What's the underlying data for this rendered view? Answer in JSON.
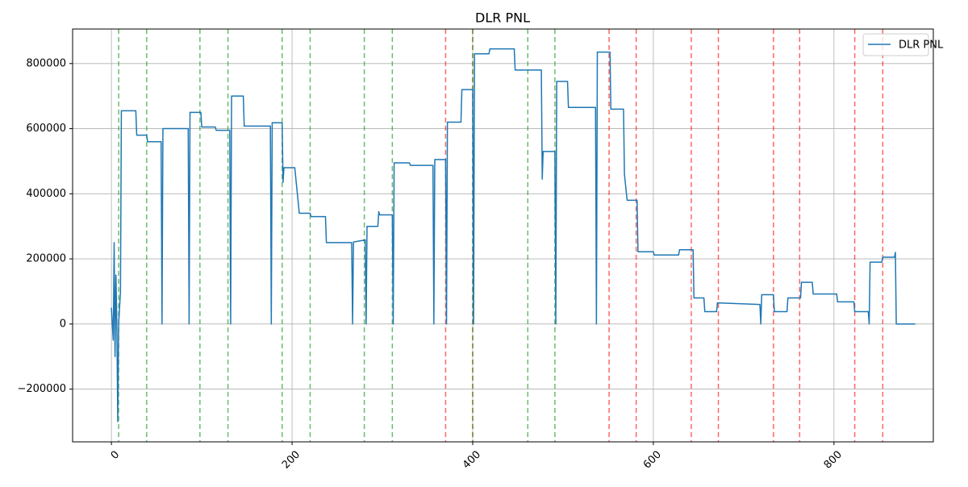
{
  "chart_data": {
    "type": "line",
    "title": "DLR PNL",
    "x": [
      0,
      1,
      2,
      3,
      4,
      5,
      6,
      7,
      8,
      10,
      11,
      27,
      28,
      39,
      40,
      55,
      56,
      57,
      85,
      86,
      87,
      99,
      100,
      115,
      116,
      131,
      132,
      133,
      146,
      147,
      176,
      177,
      178,
      189,
      190,
      191,
      203,
      208,
      220,
      221,
      237,
      238,
      266,
      267,
      268,
      281,
      282,
      283,
      295,
      296,
      297,
      311,
      312,
      313,
      330,
      331,
      356,
      357,
      358,
      370,
      371,
      372,
      387,
      388,
      400,
      401,
      402,
      418,
      419,
      446,
      447,
      476,
      477,
      478,
      491,
      492,
      493,
      505,
      506,
      536,
      537,
      538,
      552,
      553,
      567,
      568,
      571,
      582,
      583,
      600,
      601,
      628,
      629,
      644,
      645,
      656,
      657,
      670,
      671,
      718,
      719,
      720,
      733,
      734,
      748,
      749,
      763,
      764,
      776,
      777,
      803,
      804,
      822,
      823,
      838,
      839,
      840,
      853,
      854,
      867,
      868,
      869,
      890
    ],
    "series": [
      {
        "name": "DLR PNL",
        "color": "#1f77b4",
        "values": [
          50000,
          0,
          -50000,
          250000,
          -100000,
          150000,
          0,
          -300000,
          0,
          100000,
          655000,
          655000,
          580000,
          580000,
          560000,
          560000,
          0,
          600000,
          600000,
          0,
          650000,
          650000,
          605000,
          605000,
          595000,
          595000,
          0,
          700000,
          700000,
          608000,
          608000,
          0,
          618000,
          618000,
          435000,
          480000,
          480000,
          340000,
          340000,
          330000,
          330000,
          250000,
          250000,
          0,
          252000,
          258000,
          0,
          300000,
          300000,
          345000,
          335000,
          335000,
          0,
          495000,
          495000,
          487000,
          487000,
          0,
          505000,
          505000,
          0,
          620000,
          620000,
          720000,
          720000,
          0,
          830000,
          830000,
          845000,
          845000,
          780000,
          780000,
          445000,
          530000,
          530000,
          0,
          745000,
          745000,
          665000,
          665000,
          0,
          835000,
          835000,
          660000,
          660000,
          460000,
          380000,
          380000,
          222000,
          222000,
          212000,
          212000,
          228000,
          228000,
          80000,
          80000,
          38000,
          38000,
          65000,
          60000,
          0,
          90000,
          90000,
          38000,
          38000,
          80000,
          80000,
          128000,
          128000,
          92000,
          92000,
          68000,
          68000,
          38000,
          38000,
          0,
          190000,
          190000,
          205000,
          205000,
          220000,
          0,
          0
        ]
      }
    ],
    "vlines": [
      {
        "x": 8,
        "color": "#2ca02c"
      },
      {
        "x": 39,
        "color": "#2ca02c"
      },
      {
        "x": 98,
        "color": "#2ca02c"
      },
      {
        "x": 129,
        "color": "#2ca02c"
      },
      {
        "x": 189,
        "color": "#2ca02c"
      },
      {
        "x": 220,
        "color": "#2ca02c"
      },
      {
        "x": 280,
        "color": "#2ca02c"
      },
      {
        "x": 311,
        "color": "#2ca02c"
      },
      {
        "x": 461,
        "color": "#2ca02c"
      },
      {
        "x": 491,
        "color": "#2ca02c"
      },
      {
        "x": 370,
        "color": "#ff0000"
      },
      {
        "x": 400,
        "color": "#ff0000"
      },
      {
        "x": 551,
        "color": "#ff0000"
      },
      {
        "x": 581,
        "color": "#ff0000"
      },
      {
        "x": 642,
        "color": "#ff0000"
      },
      {
        "x": 672,
        "color": "#ff0000"
      },
      {
        "x": 733,
        "color": "#ff0000"
      },
      {
        "x": 762,
        "color": "#ff0000"
      },
      {
        "x": 823,
        "color": "#ff0000"
      },
      {
        "x": 854,
        "color": "#ff0000"
      },
      {
        "x": 400,
        "color": "#2ca02c"
      }
    ],
    "xlim": [
      -43,
      910
    ],
    "ylim": [
      -362000,
      906000
    ],
    "xticks": [
      0,
      200,
      400,
      600,
      800
    ],
    "yticks": [
      {
        "value": -200000,
        "label": "−200000"
      },
      0,
      200000,
      400000,
      600000,
      800000
    ],
    "grid": true,
    "legend": "upper right"
  }
}
